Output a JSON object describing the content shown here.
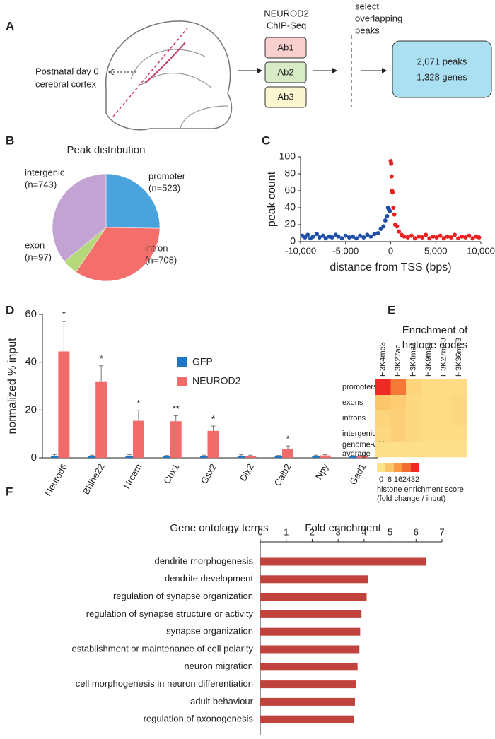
{
  "diagram": {
    "panel": "A",
    "region": [
      "Postnatal day 0",
      "cerebral cortex"
    ],
    "method": [
      "NEUROD2",
      "ChIP-Seq"
    ],
    "antibodies": [
      "Ab1",
      "Ab2",
      "Ab3"
    ],
    "step": [
      "select",
      "overlapping",
      "peaks"
    ],
    "result": [
      "2,071 peaks",
      "1,328 genes"
    ]
  },
  "chart_data": [
    {
      "type": "pie",
      "panel": "B",
      "title": "Peak distribution",
      "categories": [
        "promoter",
        "intron",
        "exon",
        "intergenic"
      ],
      "values": [
        523,
        708,
        97,
        743
      ],
      "value_labels": [
        "(n=523)",
        "(n=708)",
        "(n=97)",
        "(n=743)"
      ],
      "colors": [
        "#4ba3dd",
        "#f46e6b",
        "#b5d97a",
        "#c3a3d4"
      ]
    },
    {
      "type": "scatter",
      "panel": "C",
      "xlabel": "distance from TSS (bps)",
      "ylabel": "peak count",
      "xlim": [
        -10000,
        10000
      ],
      "xticks": [
        {
          "value": -10000,
          "label": "-10,000"
        },
        {
          "value": -5000,
          "label": "-5,000"
        },
        0,
        {
          "value": 5000,
          "label": "5,000"
        },
        {
          "value": 10000,
          "label": "10,000"
        }
      ],
      "ylim": [
        0,
        100
      ],
      "yticks": [
        0,
        20,
        40,
        60,
        80,
        100
      ],
      "series": [
        {
          "color": "#1f4fa8",
          "x": [
            -9800,
            -9500,
            -9200,
            -8900,
            -8600,
            -8200,
            -7900,
            -7500,
            -7200,
            -6800,
            -6500,
            -6100,
            -5800,
            -5400,
            -5000,
            -4600,
            -4200,
            -3800,
            -3400,
            -3000,
            -2600,
            -2200,
            -1800,
            -1400,
            -1100,
            -800,
            -600,
            -400,
            -300,
            -200,
            -100
          ],
          "values": [
            7,
            5,
            8,
            4,
            6,
            9,
            5,
            7,
            4,
            6,
            5,
            8,
            6,
            4,
            7,
            5,
            6,
            4,
            7,
            5,
            8,
            6,
            9,
            10,
            15,
            18,
            25,
            30,
            40,
            38,
            36
          ]
        },
        {
          "color": "#e8201f",
          "x": [
            0,
            50,
            100,
            150,
            200,
            300,
            400,
            500,
            700,
            900,
            1200,
            1500,
            1900,
            2300,
            2700,
            3100,
            3500,
            3900,
            4300,
            4700,
            5100,
            5500,
            5900,
            6300,
            6700,
            7100,
            7500,
            7900,
            8300,
            8700,
            9100,
            9500,
            9800
          ],
          "values": [
            95,
            92,
            77,
            60,
            58,
            40,
            32,
            20,
            18,
            12,
            8,
            6,
            5,
            7,
            4,
            6,
            5,
            8,
            4,
            6,
            5,
            7,
            4,
            6,
            5,
            8,
            4,
            6,
            5,
            7,
            4,
            6,
            5
          ]
        }
      ]
    },
    {
      "type": "bar",
      "panel": "D",
      "ylabel": "normalized % input",
      "categories": [
        "Neurod6",
        "Bhlhe22",
        "Nrcam",
        "Cux1",
        "Gsx2",
        "Dlx2",
        "Calb2",
        "Npy",
        "Gad1"
      ],
      "ylim": [
        0,
        60
      ],
      "yticks": [
        0,
        20,
        40,
        60
      ],
      "series": [
        {
          "name": "GFP",
          "color": "#1f77c4",
          "values": [
            0.8,
            0.7,
            0.8,
            0.6,
            0.7,
            0.8,
            0.6,
            0.7,
            0.6
          ],
          "errors": [
            0.6,
            0.4,
            0.5,
            0.4,
            0.4,
            0.5,
            0.4,
            0.4,
            0.3
          ]
        },
        {
          "name": "NEUROD2",
          "color": "#f26b6b",
          "values": [
            44.5,
            32,
            15.5,
            15.3,
            11.3,
            0.8,
            3.8,
            1,
            0.8
          ],
          "errors": [
            12.5,
            6.5,
            4.5,
            2.3,
            2,
            0.3,
            1.2,
            0.3,
            0.2
          ]
        }
      ],
      "annotations": [
        "*",
        "*",
        "*",
        "**",
        "*",
        null,
        "*",
        null,
        null
      ]
    },
    {
      "type": "heatmap",
      "panel": "E",
      "title": [
        "Enrichment of",
        "histone codes"
      ],
      "columns": [
        "H3K4me3",
        "H3K27ac",
        "H3K4me1",
        "H3K9me3",
        "H3K27me3",
        "H3K36me3"
      ],
      "rows": [
        [
          "promoters"
        ],
        [
          "exons"
        ],
        [
          "introns"
        ],
        [
          "intergenic"
        ],
        [
          "genome-wide",
          "average"
        ]
      ],
      "values": [
        [
          32,
          22,
          4,
          2,
          2,
          2
        ],
        [
          8,
          6,
          3,
          2,
          2,
          3
        ],
        [
          4,
          5,
          3,
          2,
          2,
          3
        ],
        [
          3,
          5,
          3,
          2,
          2,
          2
        ],
        [
          1,
          1,
          1,
          1,
          1,
          1
        ]
      ],
      "zlim": [
        0,
        32
      ],
      "zticks": [
        0,
        8,
        16,
        24,
        32
      ],
      "colors": [
        "#fde38e",
        "#fbc56a",
        "#f79a42",
        "#f36c32",
        "#ee2a24"
      ],
      "colorbar_label": [
        "histone enrichment score",
        "(fold change / input)"
      ]
    },
    {
      "type": "hbar",
      "panel": "F",
      "category_title": "Gene ontology terms",
      "xlabel": "Fold enrichment",
      "categories": [
        "dendrite morphogenesis",
        "dendrite development",
        "regulation of synapse organization",
        "regulation of synapse structure or activity",
        "synapse organization",
        "establishment or maintenance of cell polarity",
        "neuron migration",
        "cell morphogenesis in neuron differentiation",
        "adult behaviour",
        "regulation of axonogenesis"
      ],
      "values": [
        6.4,
        4.15,
        4.1,
        3.9,
        3.85,
        3.82,
        3.75,
        3.7,
        3.65,
        3.6
      ],
      "xlim": [
        0,
        7
      ],
      "xticks": [
        0,
        1,
        2,
        3,
        4,
        5,
        6,
        7
      ],
      "color": "#c1433e"
    }
  ]
}
